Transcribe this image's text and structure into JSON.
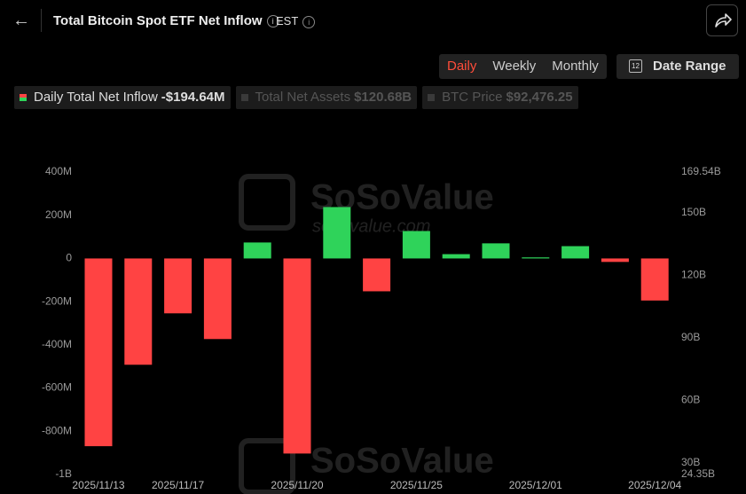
{
  "header": {
    "title": "Total Bitcoin Spot ETF Net Inflow",
    "timezone": "EST"
  },
  "controls": {
    "periods": [
      "Daily",
      "Weekly",
      "Monthly"
    ],
    "active": "Daily",
    "date_range": "Date Range",
    "date_icon": "12"
  },
  "legend": [
    {
      "name": "Daily Total Net Inflow",
      "value": "-$194.64M",
      "active": true
    },
    {
      "name": "Total Net Assets",
      "value": "$120.68B",
      "active": false
    },
    {
      "name": "BTC Price",
      "value": "$92,476.25",
      "active": false
    }
  ],
  "watermark": {
    "brand": "SoSoValue",
    "site": "sosovalue.com"
  },
  "chart_data": {
    "type": "bar",
    "categories": [
      "2025/11/13",
      null,
      "2025/11/17",
      null,
      null,
      "2025/11/20",
      null,
      null,
      "2025/11/25",
      null,
      null,
      "2025/12/01",
      null,
      null,
      "2025/12/04"
    ],
    "values": [
      -869,
      -492,
      -254,
      -373,
      74,
      -903,
      238,
      -152,
      127,
      20,
      70,
      5,
      57,
      -16,
      -194.64
    ],
    "positive_color": "#2fd35a",
    "negative_color": "#ff4343",
    "ylim": [
      -1000,
      400
    ],
    "yticks": [
      {
        "value": -1000,
        "label": "-1B"
      },
      {
        "value": -800,
        "label": "-800M"
      },
      {
        "value": -600,
        "label": "-600M"
      },
      {
        "value": -400,
        "label": "-400M"
      },
      {
        "value": -200,
        "label": "-200M"
      },
      0,
      {
        "value": 200,
        "label": "200M"
      },
      {
        "value": 400,
        "label": "400M"
      }
    ],
    "y2lim": [
      24.35,
      169.54
    ],
    "y2ticks": [
      {
        "value": 24.35,
        "label": "24.35B"
      },
      {
        "value": 30,
        "label": "30B"
      },
      {
        "value": 60,
        "label": "60B"
      },
      {
        "value": 90,
        "label": "90B"
      },
      {
        "value": 120,
        "label": "120B"
      },
      {
        "value": 150,
        "label": "150B"
      },
      {
        "value": 169.54,
        "label": "169.54B"
      }
    ],
    "grid": false
  }
}
